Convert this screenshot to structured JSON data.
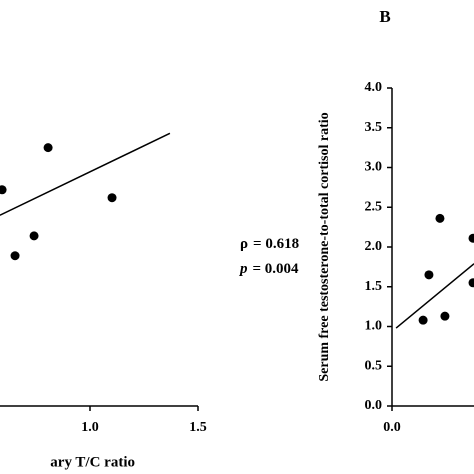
{
  "chart_data": [
    {
      "type": "scatter",
      "xlabel": "ary T/C ratio",
      "x": [
        0.593,
        0.806,
        1.102,
        0.741,
        0.653
      ],
      "values": [
        2.72,
        3.25,
        2.62,
        2.14,
        1.89
      ],
      "color": "#000000",
      "fit": {
        "x": [
          0.583,
          1.37
        ],
        "y": [
          2.4,
          3.43
        ]
      },
      "annotations": [
        {
          "symbol": "ρ",
          "text": "= 0.618"
        },
        {
          "symbol": "p",
          "text": "= 0.004"
        }
      ],
      "xlim": [
        0.5,
        1.5
      ],
      "xticks": [
        {
          "value": 1,
          "label": "1.0"
        },
        {
          "value": 1.5,
          "label": "1.5"
        }
      ],
      "ylim": [
        0,
        4
      ]
    },
    {
      "type": "scatter",
      "panel_label": "B",
      "ylabel": "Serum free testosterone-to-total cortisol ratio",
      "x": [
        0.222,
        0.171,
        0.144,
        0.245,
        0.375,
        0.375
      ],
      "values": [
        2.36,
        1.65,
        1.08,
        1.13,
        2.11,
        1.55
      ],
      "color": "#000000",
      "fit": {
        "x": [
          0.019,
          0.38
        ],
        "y": [
          0.98,
          1.79
        ]
      },
      "xlim": [
        0,
        0.38
      ],
      "xticks": [
        {
          "value": 0,
          "label": "0.0"
        }
      ],
      "ylim": [
        0,
        4
      ],
      "yticks": [
        {
          "value": 0,
          "label": "0.0"
        },
        {
          "value": 0.5,
          "label": "0.5"
        },
        {
          "value": 1,
          "label": "1.0"
        },
        {
          "value": 1.5,
          "label": "1.5"
        },
        {
          "value": 2,
          "label": "2.0"
        },
        {
          "value": 2.5,
          "label": "2.5"
        },
        {
          "value": 3,
          "label": "3.0"
        },
        {
          "value": 3.5,
          "label": "3.5"
        },
        {
          "value": 4,
          "label": "4.0"
        }
      ]
    }
  ]
}
